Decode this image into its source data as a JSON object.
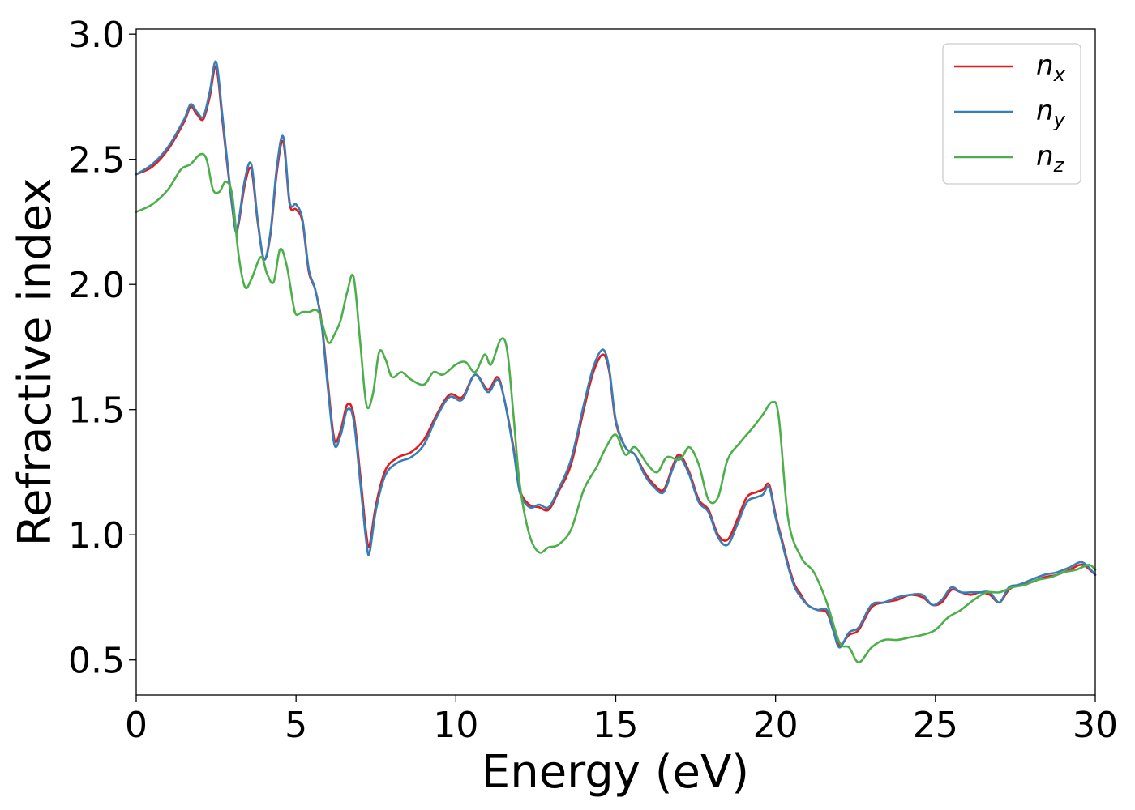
{
  "chart_data": {
    "type": "line",
    "xlabel": "Energy (eV)",
    "ylabel": "Refractive index",
    "xlim": [
      0,
      30
    ],
    "ylim": [
      0.36,
      3.02
    ],
    "xticks": [
      0,
      5,
      10,
      15,
      20,
      25,
      30
    ],
    "xtick_labels": [
      "0",
      "5",
      "10",
      "15",
      "20",
      "25",
      "30"
    ],
    "yticks": [
      0.5,
      1.0,
      1.5,
      2.0,
      2.5,
      3.0
    ],
    "ytick_labels": [
      "0.5",
      "1.0",
      "1.5",
      "2.0",
      "2.5",
      "3.0"
    ],
    "grid": false,
    "legend_position": "top-right",
    "series": [
      {
        "name": "n_x",
        "label_base": "n",
        "label_sub": "x",
        "color": "#e41a1c",
        "x": [
          0,
          0.5,
          1.0,
          1.5,
          1.7,
          1.9,
          2.1,
          2.3,
          2.5,
          2.7,
          2.9,
          3.1,
          3.2,
          3.4,
          3.6,
          3.8,
          4.0,
          4.2,
          4.4,
          4.6,
          4.8,
          5.0,
          5.2,
          5.4,
          5.6,
          5.8,
          6.0,
          6.2,
          6.4,
          6.6,
          6.8,
          7.0,
          7.2,
          7.3,
          7.5,
          7.8,
          8.2,
          8.6,
          9.0,
          9.4,
          9.8,
          10.2,
          10.6,
          11.0,
          11.3,
          11.5,
          11.8,
          12.0,
          12.3,
          12.6,
          12.9,
          13.2,
          13.6,
          14.0,
          14.3,
          14.6,
          14.8,
          15.0,
          15.3,
          15.6,
          15.9,
          16.2,
          16.5,
          16.8,
          17.0,
          17.3,
          17.6,
          17.9,
          18.2,
          18.5,
          18.8,
          19.1,
          19.4,
          19.6,
          19.8,
          20.0,
          20.2,
          20.4,
          20.6,
          20.8,
          21.0,
          21.3,
          21.6,
          21.8,
          22.0,
          22.3,
          22.6,
          23.0,
          23.4,
          23.8,
          24.2,
          24.6,
          24.9,
          25.2,
          25.5,
          25.8,
          26.1,
          26.4,
          26.7,
          27.0,
          27.3,
          27.6,
          28.0,
          28.4,
          28.8,
          29.2,
          29.6,
          30.0
        ],
        "values": [
          2.44,
          2.47,
          2.54,
          2.65,
          2.71,
          2.68,
          2.66,
          2.75,
          2.87,
          2.65,
          2.42,
          2.22,
          2.24,
          2.4,
          2.46,
          2.25,
          2.1,
          2.2,
          2.45,
          2.57,
          2.32,
          2.3,
          2.25,
          2.05,
          1.98,
          1.85,
          1.6,
          1.38,
          1.42,
          1.52,
          1.48,
          1.25,
          1.0,
          0.96,
          1.12,
          1.26,
          1.31,
          1.33,
          1.38,
          1.48,
          1.56,
          1.55,
          1.64,
          1.58,
          1.63,
          1.55,
          1.35,
          1.18,
          1.12,
          1.11,
          1.1,
          1.17,
          1.28,
          1.5,
          1.65,
          1.72,
          1.65,
          1.45,
          1.35,
          1.32,
          1.25,
          1.2,
          1.18,
          1.28,
          1.32,
          1.25,
          1.14,
          1.1,
          1.0,
          0.98,
          1.06,
          1.15,
          1.17,
          1.18,
          1.2,
          1.08,
          0.98,
          0.88,
          0.8,
          0.76,
          0.72,
          0.7,
          0.69,
          0.62,
          0.56,
          0.6,
          0.62,
          0.71,
          0.73,
          0.74,
          0.76,
          0.75,
          0.72,
          0.73,
          0.78,
          0.77,
          0.76,
          0.77,
          0.76,
          0.73,
          0.78,
          0.8,
          0.81,
          0.83,
          0.84,
          0.86,
          0.88,
          0.84
        ]
      },
      {
        "name": "n_y",
        "label_base": "n",
        "label_sub": "y",
        "color": "#377eb8",
        "x": [
          0,
          0.5,
          1.0,
          1.5,
          1.7,
          1.9,
          2.1,
          2.3,
          2.5,
          2.7,
          2.9,
          3.1,
          3.2,
          3.4,
          3.6,
          3.8,
          4.0,
          4.2,
          4.4,
          4.6,
          4.8,
          5.0,
          5.2,
          5.4,
          5.6,
          5.8,
          6.0,
          6.2,
          6.4,
          6.6,
          6.8,
          7.0,
          7.2,
          7.3,
          7.5,
          7.8,
          8.2,
          8.6,
          9.0,
          9.4,
          9.8,
          10.2,
          10.6,
          11.0,
          11.3,
          11.5,
          11.8,
          12.0,
          12.3,
          12.6,
          12.9,
          13.2,
          13.6,
          14.0,
          14.3,
          14.6,
          14.8,
          15.0,
          15.3,
          15.6,
          15.9,
          16.2,
          16.5,
          16.8,
          17.0,
          17.3,
          17.6,
          17.9,
          18.2,
          18.5,
          18.8,
          19.1,
          19.4,
          19.6,
          19.8,
          20.0,
          20.2,
          20.4,
          20.6,
          20.8,
          21.0,
          21.3,
          21.6,
          21.8,
          22.0,
          22.3,
          22.6,
          23.0,
          23.4,
          23.8,
          24.2,
          24.6,
          24.9,
          25.2,
          25.5,
          25.8,
          26.1,
          26.4,
          26.7,
          27.0,
          27.3,
          27.6,
          28.0,
          28.4,
          28.8,
          29.2,
          29.6,
          30.0
        ],
        "values": [
          2.44,
          2.48,
          2.55,
          2.66,
          2.72,
          2.69,
          2.67,
          2.77,
          2.89,
          2.67,
          2.43,
          2.22,
          2.25,
          2.42,
          2.48,
          2.26,
          2.1,
          2.21,
          2.47,
          2.59,
          2.33,
          2.32,
          2.26,
          2.06,
          1.98,
          1.84,
          1.58,
          1.36,
          1.4,
          1.5,
          1.46,
          1.22,
          0.97,
          0.93,
          1.1,
          1.24,
          1.29,
          1.31,
          1.36,
          1.47,
          1.55,
          1.54,
          1.64,
          1.57,
          1.62,
          1.55,
          1.34,
          1.17,
          1.11,
          1.12,
          1.11,
          1.18,
          1.3,
          1.52,
          1.67,
          1.74,
          1.66,
          1.46,
          1.35,
          1.32,
          1.24,
          1.19,
          1.17,
          1.27,
          1.31,
          1.24,
          1.13,
          1.09,
          0.99,
          0.96,
          1.04,
          1.13,
          1.15,
          1.16,
          1.19,
          1.07,
          0.97,
          0.87,
          0.79,
          0.75,
          0.72,
          0.7,
          0.7,
          0.62,
          0.55,
          0.61,
          0.63,
          0.72,
          0.73,
          0.75,
          0.76,
          0.76,
          0.72,
          0.74,
          0.79,
          0.77,
          0.77,
          0.77,
          0.77,
          0.73,
          0.79,
          0.8,
          0.82,
          0.84,
          0.85,
          0.87,
          0.89,
          0.84
        ]
      },
      {
        "name": "n_z",
        "label_base": "n",
        "label_sub": "z",
        "color": "#4daf4a",
        "x": [
          0,
          0.5,
          1.0,
          1.4,
          1.7,
          2.0,
          2.2,
          2.4,
          2.6,
          2.8,
          3.0,
          3.2,
          3.4,
          3.6,
          3.9,
          4.1,
          4.3,
          4.5,
          4.7,
          4.9,
          5.0,
          5.2,
          5.4,
          5.7,
          6.0,
          6.2,
          6.4,
          6.6,
          6.8,
          7.0,
          7.2,
          7.4,
          7.6,
          7.8,
          8.0,
          8.3,
          8.6,
          9.0,
          9.3,
          9.6,
          10.0,
          10.3,
          10.6,
          10.9,
          11.1,
          11.4,
          11.6,
          11.8,
          12.0,
          12.3,
          12.6,
          12.9,
          13.2,
          13.6,
          14.0,
          14.4,
          14.7,
          15.0,
          15.3,
          15.6,
          16.0,
          16.3,
          16.6,
          17.0,
          17.3,
          17.6,
          17.9,
          18.2,
          18.5,
          18.9,
          19.3,
          19.6,
          19.9,
          20.1,
          20.4,
          20.8,
          21.2,
          21.6,
          22.0,
          22.3,
          22.6,
          23.0,
          23.4,
          23.8,
          24.2,
          24.6,
          25.0,
          25.4,
          25.8,
          26.2,
          26.6,
          27.0,
          27.4,
          27.8,
          28.2,
          28.6,
          29.0,
          29.4,
          29.8,
          30.0
        ],
        "values": [
          2.29,
          2.32,
          2.38,
          2.46,
          2.48,
          2.52,
          2.5,
          2.38,
          2.37,
          2.41,
          2.36,
          2.12,
          1.99,
          2.02,
          2.11,
          2.04,
          2.01,
          2.14,
          2.08,
          1.93,
          1.88,
          1.89,
          1.89,
          1.89,
          1.77,
          1.8,
          1.86,
          1.97,
          2.03,
          1.78,
          1.52,
          1.56,
          1.73,
          1.7,
          1.63,
          1.65,
          1.62,
          1.6,
          1.65,
          1.64,
          1.68,
          1.69,
          1.65,
          1.72,
          1.68,
          1.78,
          1.74,
          1.48,
          1.2,
          1.0,
          0.93,
          0.95,
          0.96,
          1.02,
          1.18,
          1.27,
          1.35,
          1.4,
          1.32,
          1.35,
          1.28,
          1.25,
          1.31,
          1.3,
          1.35,
          1.28,
          1.14,
          1.15,
          1.3,
          1.37,
          1.43,
          1.48,
          1.53,
          1.47,
          1.06,
          0.91,
          0.85,
          0.73,
          0.57,
          0.55,
          0.49,
          0.55,
          0.58,
          0.58,
          0.59,
          0.6,
          0.62,
          0.67,
          0.7,
          0.74,
          0.77,
          0.77,
          0.79,
          0.8,
          0.82,
          0.83,
          0.85,
          0.86,
          0.88,
          0.86
        ]
      }
    ]
  }
}
